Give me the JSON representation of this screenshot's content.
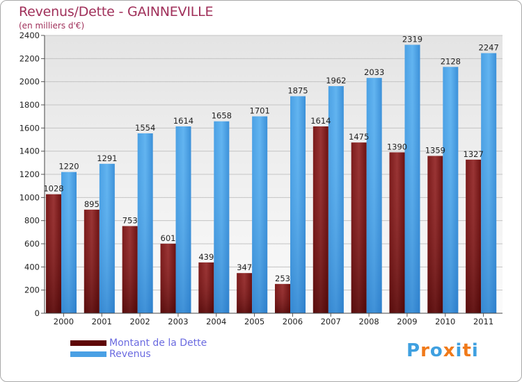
{
  "header": {
    "title": "Revenus/Dette - GAINNEVILLE",
    "subtitle": "(en milliers d'€)"
  },
  "legend": {
    "items": [
      {
        "label": "Montant de la Dette",
        "color": "#6b0b0b",
        "text_color": "#6a6ae0"
      },
      {
        "label": "Revenus",
        "color": "#3f95da",
        "text_color": "#6a6ae0"
      }
    ]
  },
  "logo": {
    "text": "Proxiti",
    "colors": [
      "#3fa0e0",
      "#f07a1a",
      "#3fa0e0",
      "#f07a1a",
      "#3fa0e0",
      "#f07a1a",
      "#3fa0e0"
    ]
  },
  "colors": {
    "title": "#a0305a",
    "dette_top": "#8a2a2a",
    "dette_bottom": "#4a0404",
    "revenus_top": "#5fb0ee",
    "revenus_bottom": "#2e82cc",
    "plot_bg_top": "#e6e6e6",
    "plot_bg_bottom": "#fafafa",
    "grid": "#c8c8c8"
  },
  "chart_data": {
    "type": "bar",
    "title": "Revenus/Dette - GAINNEVILLE",
    "subtitle": "(en milliers d'€)",
    "categories": [
      "2000",
      "2001",
      "2002",
      "2003",
      "2004",
      "2005",
      "2006",
      "2007",
      "2008",
      "2009",
      "2010",
      "2011"
    ],
    "series": [
      {
        "name": "Montant de la Dette",
        "values": [
          1028,
          895,
          753,
          601,
          439,
          347,
          253,
          1614,
          1475,
          1390,
          1359,
          1327
        ]
      },
      {
        "name": "Revenus",
        "values": [
          1220,
          1291,
          1554,
          1614,
          1658,
          1701,
          1875,
          1962,
          2033,
          2319,
          2128,
          2247
        ]
      }
    ],
    "ylim": [
      0,
      2400
    ],
    "yticks": [
      0,
      200,
      400,
      600,
      800,
      1000,
      1200,
      1400,
      1600,
      1800,
      2000,
      2200,
      2400
    ],
    "grid": true,
    "legend_position": "bottom-left"
  }
}
